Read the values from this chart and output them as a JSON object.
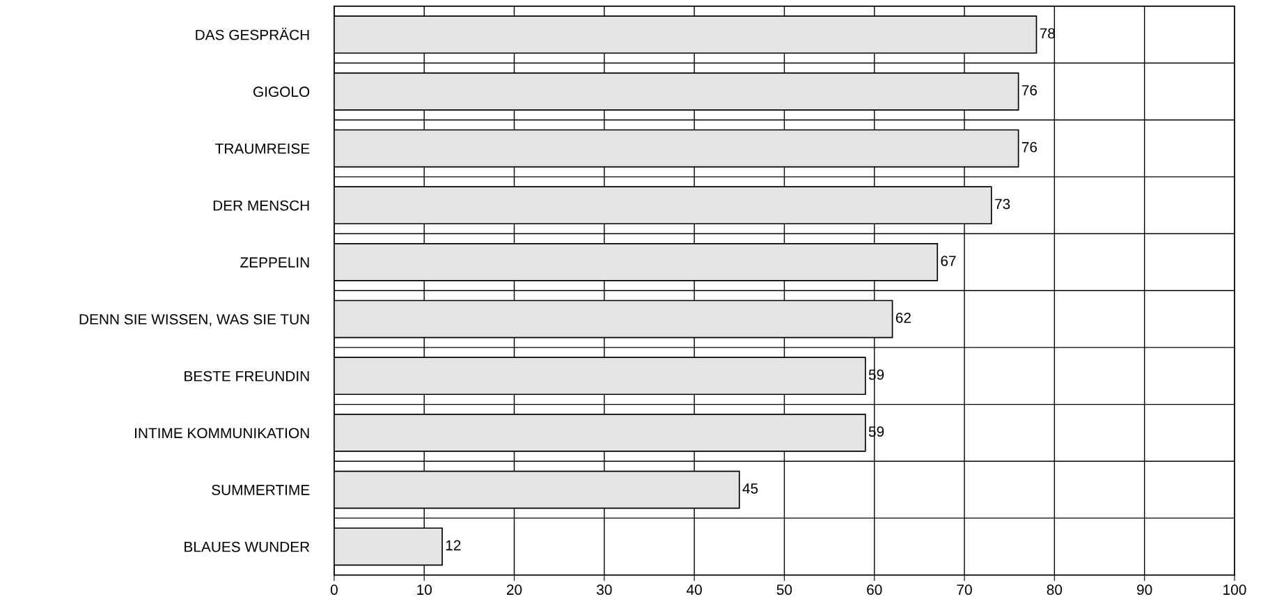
{
  "chart_data": {
    "type": "bar",
    "orientation": "horizontal",
    "categories": [
      "DAS GESPRÄCH",
      "GIGOLO",
      "TRAUMREISE",
      "DER MENSCH",
      "ZEPPELIN",
      "DENN SIE WISSEN, WAS SIE TUN",
      "BESTE FREUNDIN",
      "INTIME KOMMUNIKATION",
      "SUMMERTIME",
      "BLAUES WUNDER"
    ],
    "values": [
      78,
      76,
      76,
      73,
      67,
      62,
      59,
      59,
      45,
      12
    ],
    "color": "#e4e4e4",
    "xlim": [
      0,
      100
    ],
    "xticks": [
      0,
      10,
      20,
      30,
      40,
      50,
      60,
      70,
      80,
      90,
      100
    ],
    "grid": true,
    "data_labels": true
  }
}
